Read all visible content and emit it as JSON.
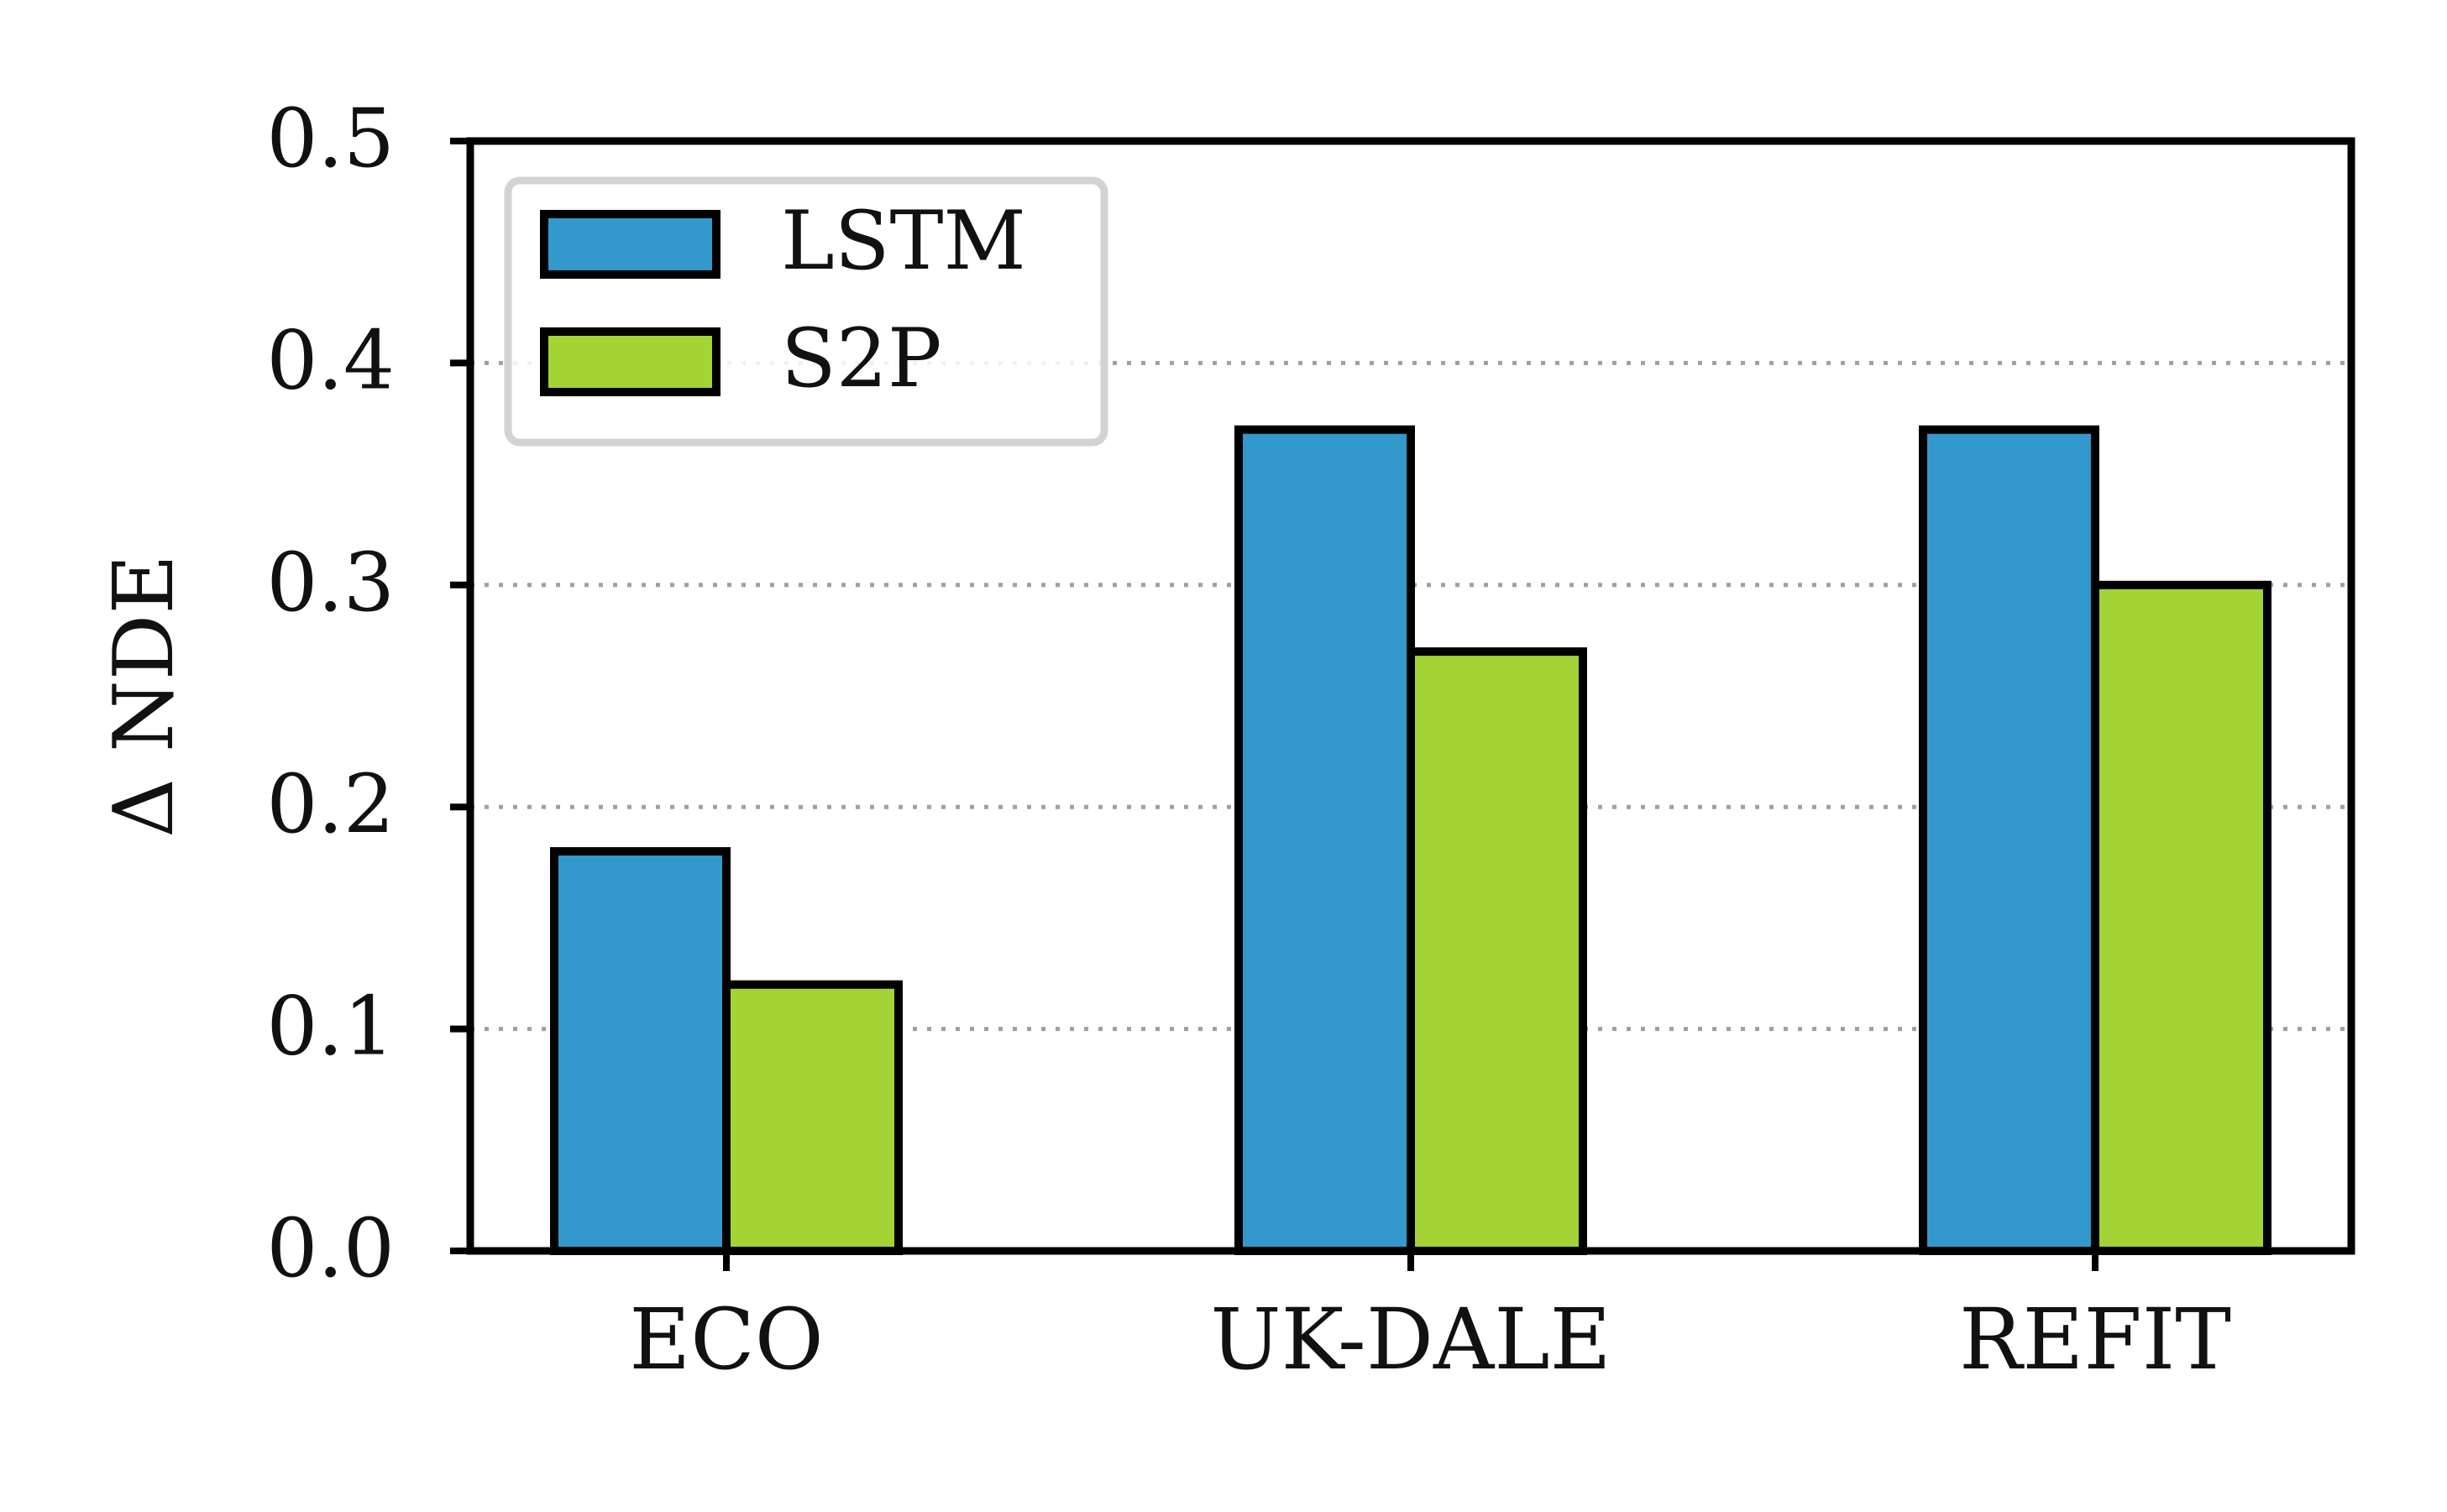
{
  "chart_data": {
    "type": "bar",
    "categories": [
      "ECO",
      "UK-DALE",
      "REFIT"
    ],
    "series": [
      {
        "name": "LSTM",
        "values": [
          0.18,
          0.37,
          0.37
        ],
        "color": "#3399cc"
      },
      {
        "name": "S2P",
        "values": [
          0.12,
          0.27,
          0.3
        ],
        "color": "#a3d334"
      }
    ],
    "ylabel": "Δ NDE",
    "xlabel": "",
    "ylim": [
      0,
      0.5
    ],
    "yticks": [
      "0.0",
      "0.1",
      "0.2",
      "0.3",
      "0.4",
      "0.5"
    ],
    "grid": "y-dotted",
    "legend_position": "top-left"
  }
}
